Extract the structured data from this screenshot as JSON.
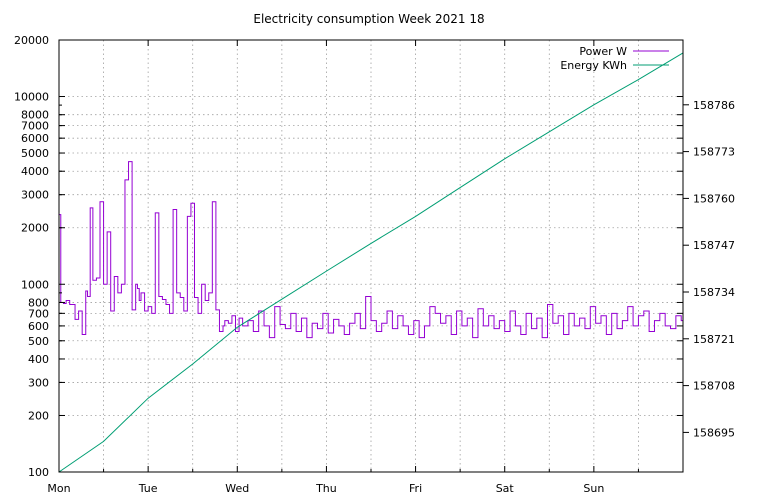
{
  "chart_data": {
    "type": "line",
    "title": "Electricity consumption Week 2021 18",
    "xlabel": "",
    "ylabel": "",
    "y2label": "",
    "grid": true,
    "legend_position": "top-right",
    "x_ticks": [
      "Mon",
      "Tue",
      "Wed",
      "Thu",
      "Fri",
      "Sat",
      "Sun"
    ],
    "x_range_days": [
      0,
      7
    ],
    "y_scale": "log",
    "y_range": [
      100,
      20000
    ],
    "y_ticks": [
      {
        "value": 100,
        "label": "100"
      },
      {
        "value": 200,
        "label": "200"
      },
      {
        "value": 300,
        "label": "300"
      },
      {
        "value": 400,
        "label": "400"
      },
      {
        "value": 500,
        "label": "500"
      },
      {
        "value": 600,
        "label": "600"
      },
      {
        "value": 700,
        "label": "700"
      },
      {
        "value": 800,
        "label": "800"
      },
      {
        "value": 1000,
        "label": "1000"
      },
      {
        "value": 2000,
        "label": "2000"
      },
      {
        "value": 3000,
        "label": "3000"
      },
      {
        "value": 4000,
        "label": "4000"
      },
      {
        "value": 5000,
        "label": "5000"
      },
      {
        "value": 6000,
        "label": "6000"
      },
      {
        "value": 7000,
        "label": "7000"
      },
      {
        "value": 8000,
        "label": "8000"
      },
      {
        "value": 10000,
        "label": "10000"
      },
      {
        "value": 20000,
        "label": "20000"
      }
    ],
    "y2_scale": "linear",
    "y2_range": [
      158684,
      158804
    ],
    "y2_ticks": [
      {
        "value": 158695,
        "label": "158695"
      },
      {
        "value": 158708,
        "label": "158708"
      },
      {
        "value": 158721,
        "label": "158721"
      },
      {
        "value": 158734,
        "label": "158734"
      },
      {
        "value": 158747,
        "label": "158747"
      },
      {
        "value": 158760,
        "label": "158760"
      },
      {
        "value": 158773,
        "label": "158773"
      },
      {
        "value": 158786,
        "label": "158786"
      }
    ],
    "series": [
      {
        "name": "Power W",
        "axis": "y",
        "color": "#9400d3",
        "style": "steps",
        "x": [
          0.0,
          0.02,
          0.05,
          0.08,
          0.12,
          0.18,
          0.22,
          0.26,
          0.3,
          0.32,
          0.35,
          0.38,
          0.42,
          0.46,
          0.5,
          0.54,
          0.58,
          0.62,
          0.66,
          0.7,
          0.74,
          0.78,
          0.82,
          0.86,
          0.88,
          0.9,
          0.92,
          0.96,
          1.0,
          1.04,
          1.08,
          1.12,
          1.16,
          1.2,
          1.24,
          1.28,
          1.32,
          1.36,
          1.4,
          1.44,
          1.48,
          1.52,
          1.56,
          1.6,
          1.64,
          1.68,
          1.72,
          1.76,
          1.8,
          1.84,
          1.86,
          1.9,
          1.94,
          1.98,
          2.02,
          2.06,
          2.12,
          2.18,
          2.24,
          2.3,
          2.36,
          2.42,
          2.48,
          2.54,
          2.6,
          2.66,
          2.72,
          2.78,
          2.84,
          2.9,
          2.96,
          3.02,
          3.08,
          3.14,
          3.2,
          3.26,
          3.32,
          3.38,
          3.44,
          3.5,
          3.56,
          3.62,
          3.68,
          3.74,
          3.8,
          3.86,
          3.92,
          3.98,
          4.04,
          4.1,
          4.16,
          4.22,
          4.28,
          4.34,
          4.4,
          4.46,
          4.52,
          4.58,
          4.64,
          4.7,
          4.76,
          4.82,
          4.88,
          4.94,
          5.0,
          5.06,
          5.12,
          5.18,
          5.24,
          5.3,
          5.36,
          5.42,
          5.48,
          5.54,
          5.6,
          5.66,
          5.72,
          5.78,
          5.84,
          5.9,
          5.96,
          6.02,
          6.08,
          6.14,
          6.2,
          6.26,
          6.32,
          6.38,
          6.44,
          6.5,
          6.56,
          6.62,
          6.68,
          6.74,
          6.8,
          6.86,
          6.92,
          6.98,
          7.0
        ],
        "values": [
          2350,
          800,
          790,
          820,
          780,
          650,
          720,
          540,
          920,
          860,
          2550,
          1050,
          1080,
          2750,
          1000,
          1900,
          720,
          1100,
          900,
          1000,
          3600,
          4500,
          730,
          1000,
          950,
          820,
          900,
          720,
          760,
          700,
          2400,
          860,
          830,
          780,
          700,
          2500,
          900,
          850,
          720,
          2300,
          2700,
          850,
          700,
          1000,
          820,
          900,
          2750,
          730,
          560,
          600,
          640,
          620,
          680,
          560,
          660,
          600,
          640,
          560,
          720,
          600,
          520,
          760,
          610,
          580,
          700,
          560,
          660,
          520,
          620,
          580,
          700,
          550,
          650,
          600,
          540,
          620,
          700,
          580,
          860,
          640,
          560,
          620,
          720,
          580,
          680,
          600,
          540,
          640,
          520,
          600,
          760,
          700,
          620,
          680,
          540,
          720,
          600,
          660,
          520,
          740,
          600,
          680,
          580,
          640,
          560,
          720,
          600,
          540,
          700,
          580,
          660,
          520,
          780,
          620,
          680,
          540,
          700,
          600,
          660,
          580,
          760,
          620,
          680,
          540,
          700,
          580,
          640,
          760,
          600,
          680,
          720,
          560,
          640,
          700,
          600,
          580,
          680,
          640,
          660
        ]
      },
      {
        "name": "Energy KWh",
        "axis": "y2",
        "color": "#009e73",
        "style": "line",
        "x": [
          0.0,
          0.5,
          1.0,
          1.5,
          2.0,
          2.5,
          3.0,
          3.5,
          4.0,
          4.5,
          5.0,
          5.5,
          6.0,
          6.5,
          7.0
        ],
        "values": [
          158684.0,
          158692.5,
          158704.5,
          158714.0,
          158724.2,
          158732.0,
          158739.8,
          158747.5,
          158755.0,
          158763.0,
          158771.0,
          158778.5,
          158786.0,
          158793.0,
          158800.4
        ]
      }
    ]
  }
}
